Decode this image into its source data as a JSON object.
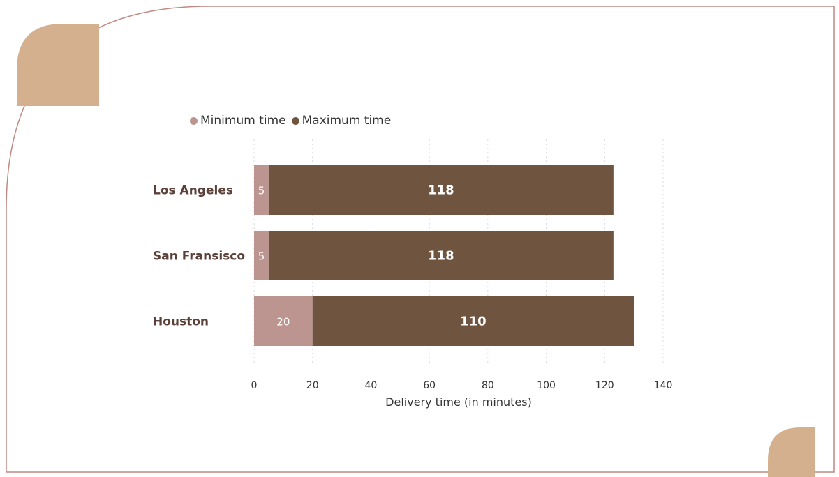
{
  "chart_data": {
    "type": "bar",
    "orientation": "horizontal",
    "stacked": true,
    "title": "",
    "categories": [
      "Los Angeles",
      "San Fransisco",
      "Houston"
    ],
    "series": [
      {
        "name": "Minimum time",
        "values": [
          5,
          5,
          20
        ],
        "color": "#bc9490"
      },
      {
        "name": "Maximum time",
        "values": [
          118,
          118,
          110
        ],
        "color": "#6f5440"
      }
    ],
    "xlabel": "Delivery time (in minutes)",
    "ylabel": "",
    "xlim": [
      0,
      140
    ],
    "xticks": [
      0,
      20,
      40,
      60,
      80,
      100,
      120,
      140
    ],
    "grid": "vertical-dotted",
    "legend": "top-left"
  },
  "colors": {
    "accent": "#d4b08f",
    "border": "#c08a80",
    "label_text": "#5a4037"
  }
}
